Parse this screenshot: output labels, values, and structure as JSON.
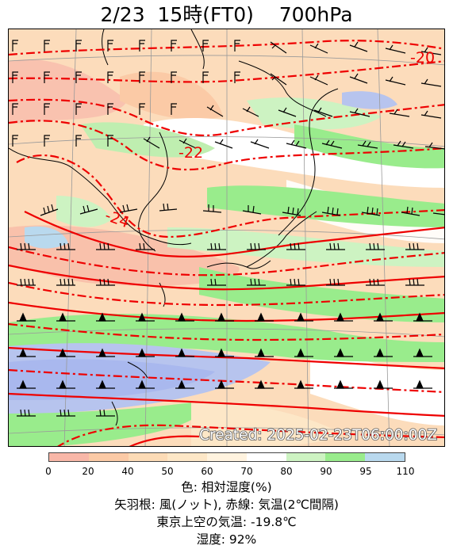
{
  "title": "2/23  15時(FT0)    700hPa",
  "map": {
    "temperature_labels": [
      "-20",
      "-22",
      "-24"
    ],
    "created_text": "Created: 2025-02-23T06:00:00Z"
  },
  "colorbar": {
    "ticks": [
      "0",
      "20",
      "40",
      "50",
      "60",
      "70",
      "80",
      "90",
      "95",
      "110"
    ],
    "colors": [
      "#f8b7a8",
      "#fbcaa6",
      "#fcdbb6",
      "#fde7c7",
      "#fff3df",
      "#ffffff",
      "#cdf3c2",
      "#99ec8c",
      "#b9d9ee",
      "#b7c4ee"
    ]
  },
  "legend": {
    "color_desc": "色: 相対湿度(%)",
    "wind_desc": "矢羽根: 風(ノット),  赤線: 気温(2℃間隔)",
    "tokyo_temp": "東京上空の気温: -19.8℃",
    "humidity": "湿度: 92%"
  }
}
